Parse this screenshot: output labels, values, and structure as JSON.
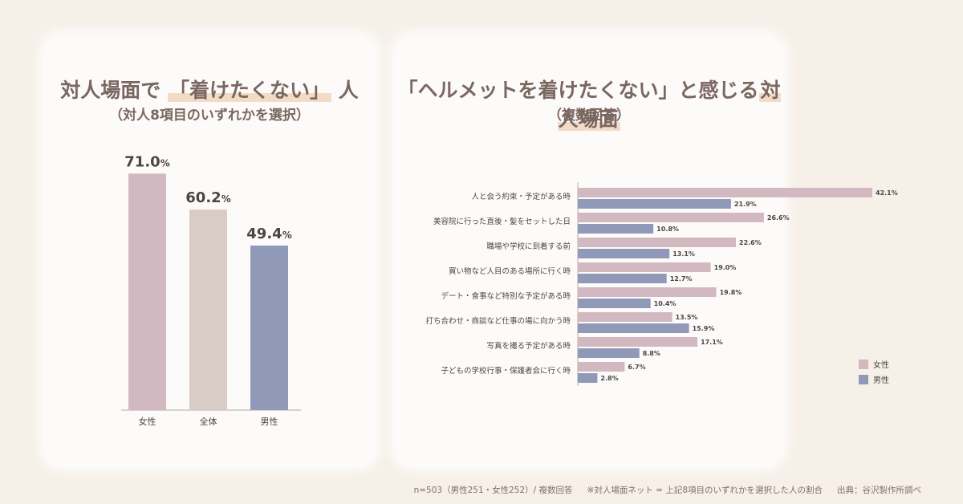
{
  "left_panel": {
    "title_before": "対人場面で",
    "title_highlight": "「着けたくない」",
    "title_after": "人",
    "subtitle": "（対人8項目のいずれかを選択）"
  },
  "right_panel": {
    "title_quote": "「ヘルメットを着けたくない」と感じる",
    "title_highlight": "対人場面",
    "subtitle": "（複数回答）"
  },
  "footnote": {
    "sample": "n=503（男性251・女性252）/ 複数回答",
    "note": "※対人場面ネット = 上記8項目のいずれかを選択した人の割合",
    "source": "出典：谷沢製作所調べ"
  },
  "chart_data": [
    {
      "type": "bar",
      "categories": [
        "女性",
        "全体",
        "男性"
      ],
      "values": [
        71.0,
        60.2,
        49.4
      ],
      "value_labels": [
        "71.0",
        "60.2",
        "49.4"
      ],
      "unit": "%",
      "colors": [
        "#d2b9c1",
        "#d9cbc5",
        "#9099b7"
      ],
      "ylim": [
        0,
        100
      ],
      "grid": false
    },
    {
      "type": "bar",
      "orientation": "horizontal",
      "categories": [
        "人と会う約束・予定がある時",
        "美容院に行った直後・髪をセットした日",
        "職場や学校に到着する前",
        "買い物など人目のある場所に行く時",
        "デート・食事など特別な予定がある時",
        "打ち合わせ・商談など仕事の場に向かう時",
        "写真を撮る予定がある時",
        "子どもの学校行事・保護者会に行く時"
      ],
      "series": [
        {
          "name": "女性",
          "color": "#d2b9c1",
          "values": [
            42.1,
            26.6,
            22.6,
            19.0,
            19.8,
            13.5,
            17.1,
            6.7
          ],
          "labels": [
            "42.1%",
            "26.6%",
            "22.6%",
            "19.0%",
            "19.8%",
            "13.5%",
            "17.1%",
            "6.7%"
          ]
        },
        {
          "name": "男性",
          "color": "#9099b7",
          "values": [
            21.9,
            10.8,
            13.1,
            12.7,
            10.4,
            15.9,
            8.8,
            2.8
          ],
          "labels": [
            "21.9%",
            "10.8%",
            "13.1%",
            "12.7%",
            "10.4%",
            "15.9%",
            "8.8%",
            "2.8%"
          ]
        }
      ],
      "legend": "bottom-right",
      "grid": false
    }
  ]
}
